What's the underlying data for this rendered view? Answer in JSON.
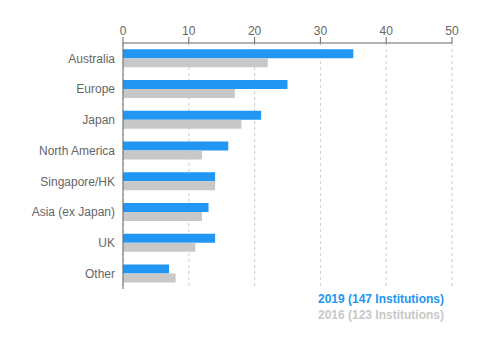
{
  "chart_data": {
    "type": "bar",
    "orientation": "horizontal",
    "categories": [
      "Australia",
      "Europe",
      "Japan",
      "North America",
      "Singapore/HK",
      "Asia (ex Japan)",
      "UK",
      "Other"
    ],
    "series": [
      {
        "name": "2019 (147 Institutions)",
        "color": "#2196F3",
        "values": [
          35,
          25,
          21,
          16,
          14,
          13,
          14,
          7
        ]
      },
      {
        "name": "2016 (123 Institutions)",
        "color": "#C8C8C8",
        "values": [
          22,
          17,
          18,
          12,
          14,
          12,
          11,
          8
        ]
      }
    ],
    "xlim": [
      0,
      50
    ],
    "xticks": [
      0,
      10,
      20,
      30,
      40,
      50
    ],
    "grid": true,
    "legend": "lower right"
  }
}
